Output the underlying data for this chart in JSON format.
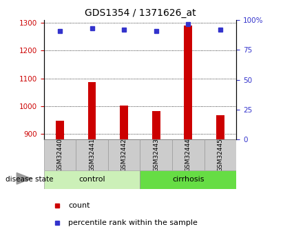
{
  "title": "GDS1354 / 1371626_at",
  "samples": [
    "GSM32440",
    "GSM32441",
    "GSM32442",
    "GSM32443",
    "GSM32444",
    "GSM32445"
  ],
  "count_values": [
    947,
    1087,
    1002,
    982,
    1290,
    968
  ],
  "percentile_values": [
    91,
    93,
    92,
    91,
    97,
    92
  ],
  "ylim_left": [
    880,
    1310
  ],
  "ylim_right": [
    0,
    100
  ],
  "yticks_left": [
    900,
    1000,
    1100,
    1200,
    1300
  ],
  "yticks_right": [
    0,
    25,
    50,
    75,
    100
  ],
  "bar_color": "#cc0000",
  "dot_color": "#3333cc",
  "grid_color": "#000000",
  "bar_bg_color": "#cccccc",
  "control_bg_light": "#ccf0b8",
  "cirrhosis_bg": "#66dd44",
  "left_axis_color": "#cc0000",
  "right_axis_color": "#3333cc",
  "legend_items": [
    {
      "color": "#cc0000",
      "label": "count"
    },
    {
      "color": "#3333cc",
      "label": "percentile rank within the sample"
    }
  ],
  "disease_label": "disease state"
}
